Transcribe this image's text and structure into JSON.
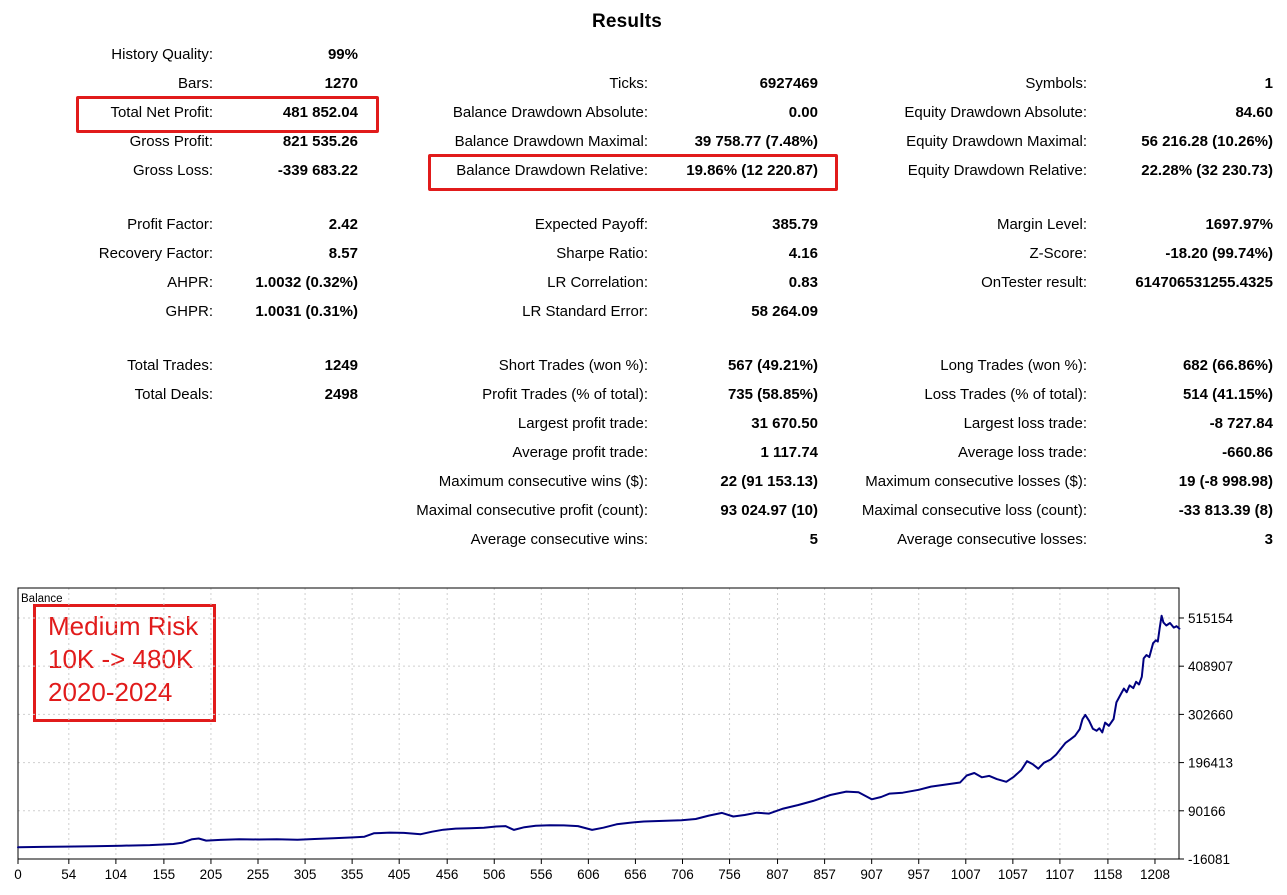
{
  "title": "Results",
  "colors": {
    "highlight_red": "#e11b1b",
    "balance_line": "#000080",
    "grid": "#cfcfcf",
    "text": "#000000"
  },
  "stats": {
    "rows": [
      {
        "c1l": "History Quality:",
        "c1v": "99%",
        "c2l": "",
        "c2v": "",
        "c3l": "",
        "c3v": ""
      },
      {
        "c1l": "Bars:",
        "c1v": "1270",
        "c2l": "Ticks:",
        "c2v": "6927469",
        "c3l": "Symbols:",
        "c3v": "1"
      },
      {
        "c1l": "Total Net Profit:",
        "c1v": "481 852.04",
        "c2l": "Balance Drawdown Absolute:",
        "c2v": "0.00",
        "c3l": "Equity Drawdown Absolute:",
        "c3v": "84.60"
      },
      {
        "c1l": "Gross Profit:",
        "c1v": "821 535.26",
        "c2l": "Balance Drawdown Maximal:",
        "c2v": "39 758.77 (7.48%)",
        "c3l": "Equity Drawdown Maximal:",
        "c3v": "56 216.28 (10.26%)"
      },
      {
        "c1l": "Gross Loss:",
        "c1v": "-339 683.22",
        "c2l": "Balance Drawdown Relative:",
        "c2v": "19.86% (12 220.87)",
        "c3l": "Equity Drawdown Relative:",
        "c3v": "22.28% (32 230.73)"
      },
      {
        "spacer": true
      },
      {
        "c1l": "Profit Factor:",
        "c1v": "2.42",
        "c2l": "Expected Payoff:",
        "c2v": "385.79",
        "c3l": "Margin Level:",
        "c3v": "1697.97%"
      },
      {
        "c1l": "Recovery Factor:",
        "c1v": "8.57",
        "c2l": "Sharpe Ratio:",
        "c2v": "4.16",
        "c3l": "Z-Score:",
        "c3v": "-18.20 (99.74%)"
      },
      {
        "c1l": "AHPR:",
        "c1v": "1.0032 (0.32%)",
        "c2l": "LR Correlation:",
        "c2v": "0.83",
        "c3l": "OnTester result:",
        "c3v": "614706531255.4325"
      },
      {
        "c1l": "GHPR:",
        "c1v": "1.0031 (0.31%)",
        "c2l": "LR Standard Error:",
        "c2v": "58 264.09",
        "c3l": "",
        "c3v": ""
      },
      {
        "spacer": true
      },
      {
        "c1l": "Total Trades:",
        "c1v": "1249",
        "c2l": "Short Trades (won %):",
        "c2v": "567 (49.21%)",
        "c3l": "Long Trades (won %):",
        "c3v": "682 (66.86%)"
      },
      {
        "c1l": "Total Deals:",
        "c1v": "2498",
        "c2l": "Profit Trades (% of total):",
        "c2v": "735 (58.85%)",
        "c3l": "Loss Trades (% of total):",
        "c3v": "514 (41.15%)"
      },
      {
        "c1l": "",
        "c1v": "",
        "c2l": "Largest profit trade:",
        "c2v": "31 670.50",
        "c3l": "Largest loss trade:",
        "c3v": "-8 727.84"
      },
      {
        "c1l": "",
        "c1v": "",
        "c2l": "Average profit trade:",
        "c2v": "1 117.74",
        "c3l": "Average loss trade:",
        "c3v": "-660.86"
      },
      {
        "c1l": "",
        "c1v": "",
        "c2l": "Maximum consecutive wins ($):",
        "c2v": "22 (91 153.13)",
        "c3l": "Maximum consecutive losses ($):",
        "c3v": "19 (-8 998.98)"
      },
      {
        "c1l": "",
        "c1v": "",
        "c2l": "Maximal consecutive profit (count):",
        "c2v": "93 024.97 (10)",
        "c3l": "Maximal consecutive loss (count):",
        "c3v": "-33 813.39 (8)"
      },
      {
        "c1l": "",
        "c1v": "",
        "c2l": "Average consecutive wins:",
        "c2v": "5",
        "c3l": "Average consecutive losses:",
        "c3v": "3"
      }
    ],
    "highlighted_rows": [
      "Total Net Profit",
      "Balance Drawdown Relative"
    ]
  },
  "chart_data": {
    "type": "line",
    "title": "Balance",
    "xlabel": "",
    "ylabel": "",
    "legend_position": "top-left-inside",
    "grid": true,
    "x_ticks": [
      0,
      54,
      104,
      155,
      205,
      255,
      305,
      355,
      405,
      456,
      506,
      556,
      606,
      656,
      706,
      756,
      807,
      857,
      907,
      957,
      1007,
      1057,
      1107,
      1158,
      1208
    ],
    "y_ticks": [
      515154,
      408907,
      302660,
      196413,
      90166,
      -16081
    ],
    "x_range": [
      0,
      1234
    ],
    "y_range": [
      -16081,
      581000
    ],
    "annotation": {
      "lines": [
        "Medium Risk",
        "10K -> 480K",
        "2020-2024"
      ]
    },
    "series": [
      {
        "name": "Balance",
        "points": [
          [
            0,
            10000
          ],
          [
            25,
            10600
          ],
          [
            50,
            11200
          ],
          [
            80,
            12000
          ],
          [
            110,
            13200
          ],
          [
            140,
            14500
          ],
          [
            165,
            17000
          ],
          [
            175,
            20000
          ],
          [
            185,
            27500
          ],
          [
            192,
            29000
          ],
          [
            200,
            24500
          ],
          [
            215,
            26000
          ],
          [
            235,
            27500
          ],
          [
            255,
            27000
          ],
          [
            275,
            27500
          ],
          [
            297,
            26500
          ],
          [
            315,
            28000
          ],
          [
            335,
            29500
          ],
          [
            356,
            31500
          ],
          [
            368,
            33000
          ],
          [
            378,
            40500
          ],
          [
            395,
            42000
          ],
          [
            410,
            41500
          ],
          [
            428,
            38500
          ],
          [
            440,
            44000
          ],
          [
            452,
            48500
          ],
          [
            465,
            51000
          ],
          [
            480,
            51500
          ],
          [
            495,
            53000
          ],
          [
            508,
            55500
          ],
          [
            518,
            56500
          ],
          [
            527,
            48000
          ],
          [
            538,
            54000
          ],
          [
            550,
            57000
          ],
          [
            565,
            58500
          ],
          [
            580,
            58000
          ],
          [
            595,
            56500
          ],
          [
            610,
            48000
          ],
          [
            622,
            53000
          ],
          [
            636,
            60500
          ],
          [
            650,
            64000
          ],
          [
            665,
            66500
          ],
          [
            685,
            68000
          ],
          [
            705,
            69500
          ],
          [
            720,
            72000
          ],
          [
            734,
            79500
          ],
          [
            748,
            85500
          ],
          [
            760,
            77500
          ],
          [
            772,
            81000
          ],
          [
            785,
            86000
          ],
          [
            798,
            84000
          ],
          [
            813,
            95000
          ],
          [
            829,
            103000
          ],
          [
            845,
            112000
          ],
          [
            863,
            125000
          ],
          [
            880,
            132500
          ],
          [
            893,
            131000
          ],
          [
            907,
            115500
          ],
          [
            917,
            120500
          ],
          [
            926,
            128000
          ],
          [
            940,
            130000
          ],
          [
            957,
            136500
          ],
          [
            970,
            143500
          ],
          [
            985,
            148000
          ],
          [
            1001,
            152500
          ],
          [
            1008,
            168000
          ],
          [
            1016,
            173500
          ],
          [
            1024,
            164000
          ],
          [
            1032,
            167000
          ],
          [
            1040,
            160000
          ],
          [
            1050,
            154000
          ],
          [
            1058,
            165000
          ],
          [
            1066,
            180000
          ],
          [
            1072,
            199500
          ],
          [
            1078,
            193000
          ],
          [
            1084,
            183000
          ],
          [
            1090,
            196000
          ],
          [
            1097,
            203000
          ],
          [
            1103,
            214000
          ],
          [
            1108,
            227000
          ],
          [
            1113,
            240000
          ],
          [
            1118,
            247500
          ],
          [
            1123,
            255500
          ],
          [
            1128,
            270000
          ],
          [
            1131,
            292000
          ],
          [
            1134,
            301500
          ],
          [
            1138,
            288500
          ],
          [
            1142,
            271000
          ],
          [
            1146,
            266500
          ],
          [
            1149,
            272000
          ],
          [
            1152,
            263000
          ],
          [
            1155,
            284500
          ],
          [
            1159,
            277500
          ],
          [
            1164,
            292500
          ],
          [
            1167,
            329000
          ],
          [
            1172,
            348500
          ],
          [
            1175,
            359500
          ],
          [
            1178,
            351500
          ],
          [
            1181,
            366500
          ],
          [
            1185,
            360500
          ],
          [
            1188,
            374500
          ],
          [
            1191,
            368500
          ],
          [
            1194,
            385500
          ],
          [
            1196,
            426000
          ],
          [
            1199,
            433500
          ],
          [
            1202,
            429000
          ],
          [
            1206,
            459500
          ],
          [
            1209,
            466000
          ],
          [
            1211,
            463000
          ],
          [
            1213,
            493000
          ],
          [
            1215,
            520000
          ],
          [
            1217,
            505500
          ],
          [
            1220,
            498500
          ],
          [
            1224,
            504000
          ],
          [
            1228,
            494000
          ],
          [
            1231,
            497000
          ],
          [
            1234,
            491852
          ]
        ]
      }
    ]
  }
}
